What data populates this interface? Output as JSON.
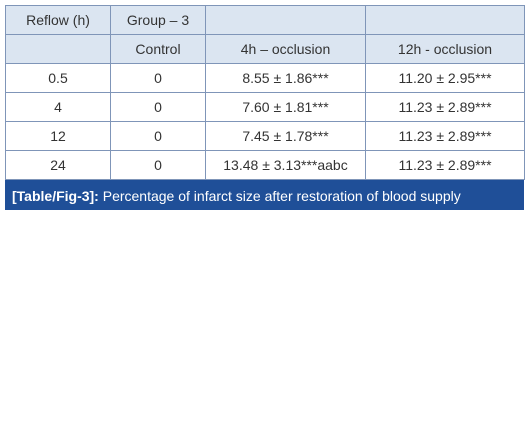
{
  "table": {
    "header": [
      "Reflow (h)",
      "Group – 3"
    ],
    "subheader": [
      "Control",
      "4h – occlusion",
      "12h - occlusion"
    ],
    "rows": [
      [
        "0.5",
        "0",
        "8.55 ± 1.86***",
        "11.20 ± 2.95***"
      ],
      [
        "4",
        "0",
        "7.60 ± 1.81***",
        "11.23 ± 2.89***"
      ],
      [
        "12",
        "0",
        "7.45 ± 1.78***",
        "11.23 ± 2.89***"
      ],
      [
        "24",
        "0",
        "13.48 ± 3.13***aabc",
        "11.23 ± 2.89***"
      ]
    ]
  },
  "caption": {
    "label": "[Table/Fig-3]:",
    "text": "Percentage of infarct size after restoration of blood supply"
  }
}
